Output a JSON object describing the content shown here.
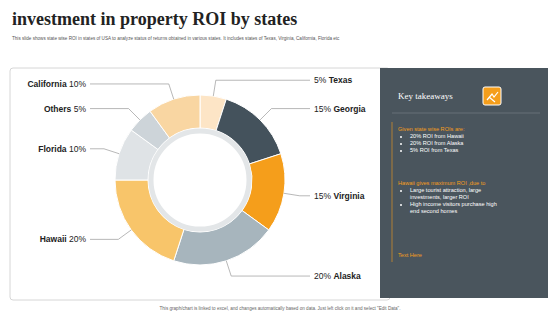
{
  "chart_data": {
    "type": "pie",
    "title": "investment in property ROI by states",
    "subtitle": "This slide shows state wise ROI in states of USA to analyze  status of returns obtained in various states. It includes states of Texas, Virginia, California, Florida etc",
    "categories": [
      "Texas",
      "Georgia",
      "Virginia",
      "Alaska",
      "Hawaii",
      "Florida",
      "Others",
      "California"
    ],
    "values": [
      5,
      15,
      15,
      20,
      20,
      10,
      5,
      10
    ],
    "value_labels": [
      "5%",
      "15%",
      "15%",
      "20%",
      "20%",
      "10%",
      "5%",
      "10%"
    ],
    "colors": [
      "#fde5c6",
      "#44525c",
      "#f59e1b",
      "#a7b5bd",
      "#f8c56a",
      "#dfe3e6",
      "#cdd4d9",
      "#f9d6a2"
    ],
    "data_labels": true
  },
  "key_takeaways": {
    "heading": "Key takeaways",
    "intro": "Given state wise ROIs are:",
    "roi_items": [
      "20% ROI from Hawaii",
      "20% ROI from Alaska",
      "5% ROI from Texas"
    ],
    "reason_intro": "Hawaii gives maximum ROI ,due to",
    "reasons": [
      "Large tourist attraction, large investments, larger ROI",
      "High income visitors purchase high end second homes"
    ],
    "placeholder": "Text Here"
  },
  "footer": "This graph/chart is linked to excel, and changes automatically based on data. Just left click on it and select \"Edit Data\"."
}
